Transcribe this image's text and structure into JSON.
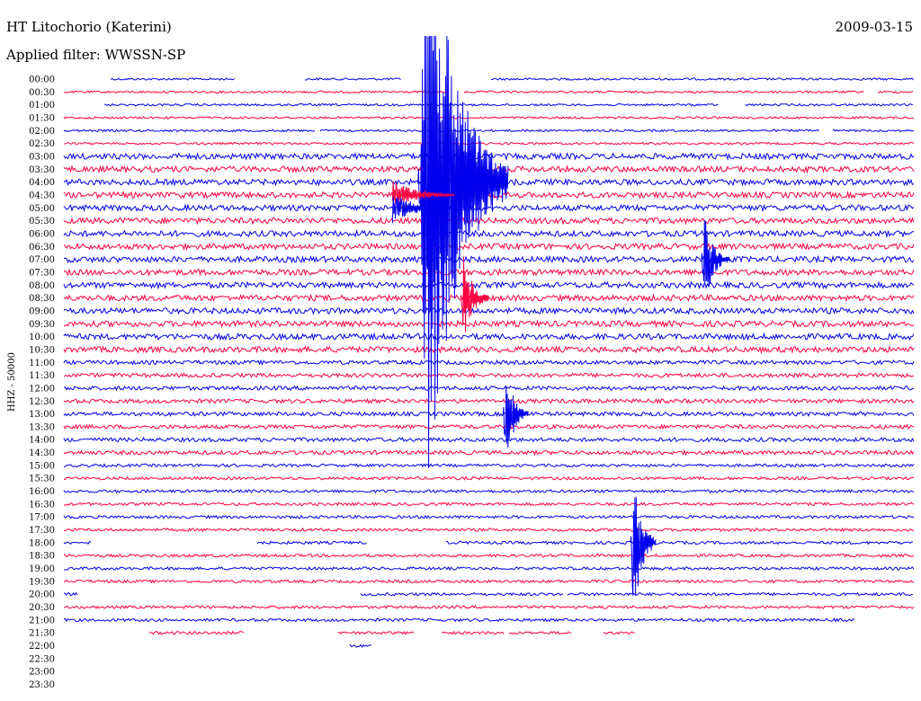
{
  "chart_data": {
    "type": "line",
    "title": "HT Litochorio (Katerini)",
    "date": "2009-03-15",
    "filter_label": "Applied filter: WWSSN-SP",
    "channel_label": "HHZ - 50000",
    "row_labels": [
      "00:00",
      "00:30",
      "01:00",
      "01:30",
      "02:00",
      "02:30",
      "03:00",
      "03:30",
      "04:00",
      "04:30",
      "05:00",
      "05:30",
      "06:00",
      "06:30",
      "07:00",
      "07:30",
      "08:00",
      "08:30",
      "09:00",
      "09:30",
      "10:00",
      "10:30",
      "11:00",
      "11:30",
      "12:00",
      "12:30",
      "13:00",
      "13:30",
      "14:00",
      "14:30",
      "15:00",
      "15:30",
      "16:00",
      "16:30",
      "17:00",
      "17:30",
      "18:00",
      "18:30",
      "19:00",
      "19:30",
      "20:00",
      "20:30",
      "21:00",
      "21:30",
      "22:00",
      "22:30",
      "23:00",
      "23:30"
    ],
    "row_minutes": 30,
    "colors": {
      "even_rows": "#0000ee",
      "odd_rows": "#ff0040"
    },
    "events": [
      {
        "row": 8,
        "minute": 12.5,
        "amplitude": 6.0,
        "duration": 3.2
      },
      {
        "row": 14,
        "minute": 22.5,
        "amplitude": 0.9,
        "duration": 1.0
      },
      {
        "row": 17,
        "minute": 14.0,
        "amplitude": 0.9,
        "duration": 1.0
      },
      {
        "row": 26,
        "minute": 15.5,
        "amplitude": 1.0,
        "duration": 0.9
      },
      {
        "row": 36,
        "minute": 20.0,
        "amplitude": 1.6,
        "duration": 0.9
      }
    ]
  }
}
